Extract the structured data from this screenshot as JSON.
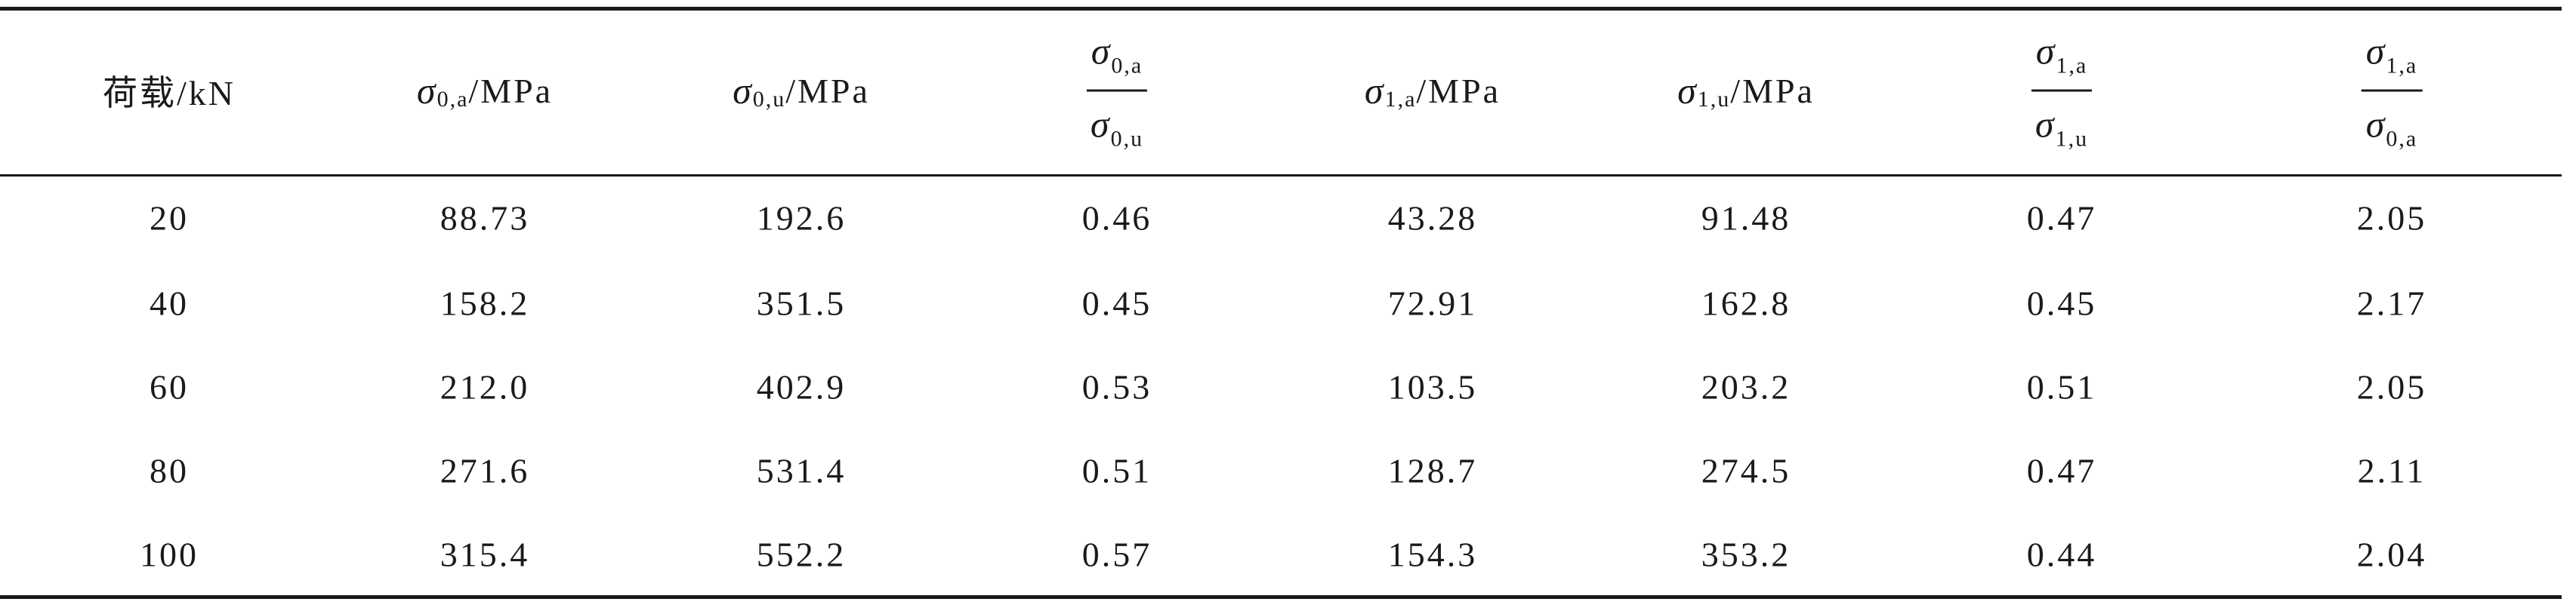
{
  "table": {
    "header": [
      "荷载/kN",
      {
        "symbol": "σ",
        "sub": "0,a",
        "unit": "/MPa"
      },
      {
        "symbol": "σ",
        "sub": "0,u",
        "unit": "/MPa"
      },
      {
        "numerator": {
          "symbol": "σ",
          "sub": "0,a"
        },
        "denominator": {
          "symbol": "σ",
          "sub": "0,u"
        }
      },
      {
        "symbol": "σ",
        "sub": "1,a",
        "unit": "/MPa"
      },
      {
        "symbol": "σ",
        "sub": "1,u",
        "unit": "/MPa"
      },
      {
        "numerator": {
          "symbol": "σ",
          "sub": "1,a"
        },
        "denominator": {
          "symbol": "σ",
          "sub": "1,u"
        }
      },
      {
        "numerator": {
          "symbol": "σ",
          "sub": "1,a"
        },
        "denominator": {
          "symbol": "σ",
          "sub": "0,a"
        }
      }
    ],
    "rows": [
      [
        "20",
        "88.73",
        "192.6",
        "0.46",
        "43.28",
        "91.48",
        "0.47",
        "2.05"
      ],
      [
        "40",
        "158.2",
        "351.5",
        "0.45",
        "72.91",
        "162.8",
        "0.45",
        "2.17"
      ],
      [
        "60",
        "212.0",
        "402.9",
        "0.53",
        "103.5",
        "203.2",
        "0.51",
        "2.05"
      ],
      [
        "80",
        "271.6",
        "531.4",
        "0.51",
        "128.7",
        "274.5",
        "0.47",
        "2.11"
      ],
      [
        "100",
        "315.4",
        "552.2",
        "0.57",
        "154.3",
        "353.2",
        "0.44",
        "2.04"
      ]
    ]
  }
}
